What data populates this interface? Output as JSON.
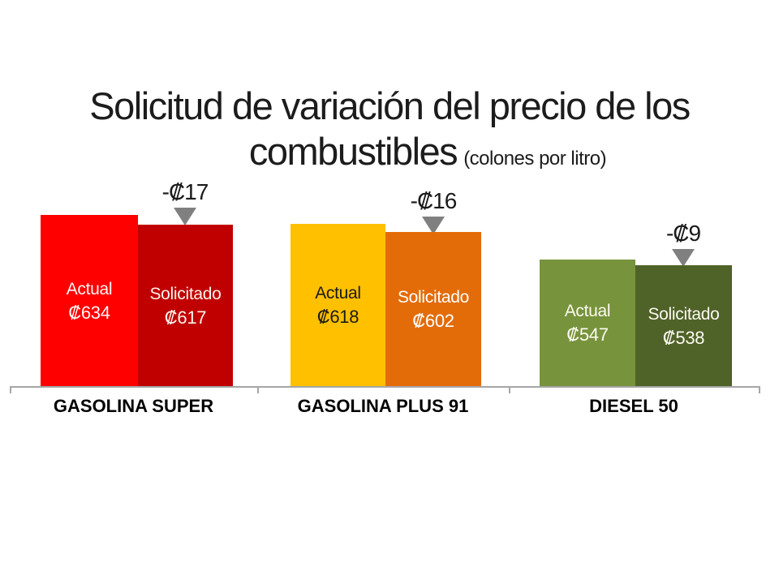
{
  "title": {
    "line1": "Solicitud de variación del precio de los",
    "line2": "combustibles",
    "unit_note": "(colones por litro)"
  },
  "chart_data": {
    "type": "bar",
    "title": "Solicitud de variación del precio de los combustibles",
    "unit": "colones por litro",
    "categories": [
      "GASOLINA SUPER",
      "GASOLINA PLUS 91",
      "DIESEL 50"
    ],
    "series": [
      {
        "name": "Actual",
        "values": [
          634,
          618,
          547
        ]
      },
      {
        "name": "Solicitado",
        "values": [
          617,
          602,
          538
        ]
      }
    ],
    "annotations": [
      "-₡17",
      "-₡16",
      "-₡9"
    ],
    "legend_position": "none",
    "grid": false,
    "value_axis_visible": false,
    "xlabel": "",
    "ylabel": ""
  },
  "groups": [
    {
      "category": "GASOLINA SUPER",
      "change_label": "-₡17",
      "actual": {
        "label": "Actual",
        "value_label": "₡634",
        "color": "#FF0000",
        "text_color": "#FFFFFF"
      },
      "solicitado": {
        "label": "Solicitado",
        "value_label": "₡617",
        "color": "#C00000",
        "text_color": "#FFFFFF"
      }
    },
    {
      "category": "GASOLINA PLUS 91",
      "change_label": "-₡16",
      "actual": {
        "label": "Actual",
        "value_label": "₡618",
        "color": "#FFC000",
        "text_color": "#1A1A1A"
      },
      "solicitado": {
        "label": "Solicitado",
        "value_label": "₡602",
        "color": "#E36C09",
        "text_color": "#FFFFFF"
      }
    },
    {
      "category": "DIESEL 50",
      "change_label": "-₡9",
      "actual": {
        "label": "Actual",
        "value_label": "₡547",
        "color": "#77933C",
        "text_color": "#FFFFFF"
      },
      "solicitado": {
        "label": "Solicitado",
        "value_label": "₡538",
        "color": "#4F6228",
        "text_color": "#FFFFFF"
      }
    }
  ],
  "colors": {
    "arrow": "#808080",
    "axis": "#A6A6A6",
    "title_text": "#1C1C1C",
    "category_text": "#000000",
    "background": "#FFFFFF"
  }
}
